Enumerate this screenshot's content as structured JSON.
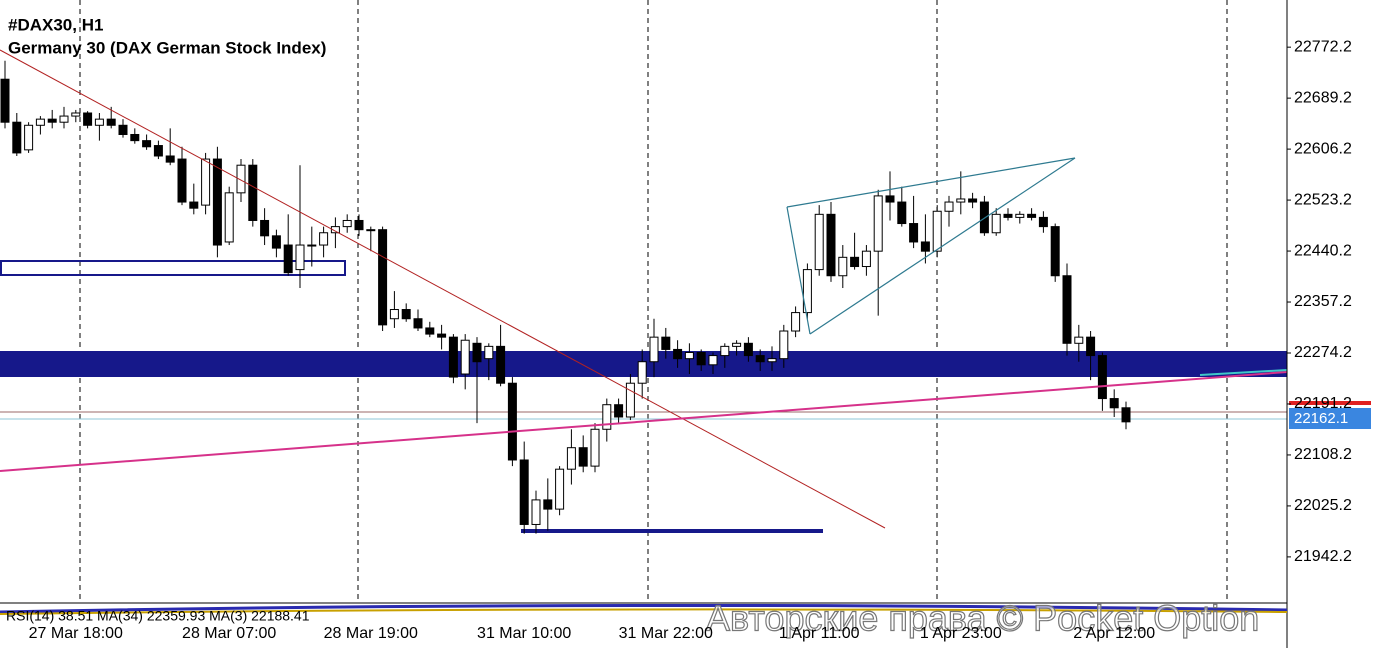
{
  "chart_data": {
    "type": "candlestick",
    "title": "#DAX30, H1",
    "subtitle": "Germany 30 (DAX German Stock Index)",
    "indicator_text": "RSI(14) 38.51 MA(34) 22359.93 MA(3) 22188.41",
    "watermark": "Авторские права © Pocket Option",
    "categories": [
      null,
      null,
      null,
      null,
      null,
      null,
      "27 Mar 18:00",
      null,
      null,
      null,
      null,
      null,
      null,
      null,
      null,
      null,
      null,
      null,
      null,
      "28 Mar 07:00",
      null,
      null,
      null,
      null,
      null,
      null,
      null,
      null,
      null,
      null,
      null,
      "28 Mar 19:00",
      null,
      null,
      null,
      null,
      null,
      null,
      null,
      null,
      null,
      null,
      null,
      null,
      "31 Mar 10:00",
      null,
      null,
      null,
      null,
      null,
      null,
      null,
      null,
      null,
      null,
      null,
      "31 Mar 22:00",
      null,
      null,
      null,
      null,
      null,
      null,
      null,
      null,
      null,
      null,
      null,
      null,
      "1 Apr 11:00",
      null,
      null,
      null,
      null,
      null,
      null,
      null,
      null,
      null,
      null,
      null,
      "1 Apr 23:00",
      null,
      null,
      null,
      null,
      null,
      null,
      null,
      null,
      null,
      null,
      null,
      null,
      "2 Apr 12:00",
      null
    ],
    "open": [
      22720,
      22650,
      22605,
      22645,
      22655,
      22650,
      22660,
      22665,
      22645,
      22655,
      22645,
      22630,
      22620,
      22612,
      22595,
      22590,
      22520,
      22515,
      22590,
      22455,
      22535,
      22580,
      22490,
      22465,
      22450,
      22410,
      22450,
      22450,
      22470,
      22480,
      22490,
      22475,
      22475,
      22330,
      22345,
      22330,
      22315,
      22305,
      22300,
      22240,
      22290,
      22265,
      22285,
      22225,
      22100,
      21995,
      22035,
      22020,
      22085,
      22120,
      22090,
      22150,
      22190,
      22170,
      22225,
      22260,
      22300,
      22280,
      22265,
      22275,
      22255,
      22270,
      22285,
      22290,
      22270,
      22260,
      22265,
      22310,
      22340,
      22410,
      22500,
      22400,
      22430,
      22415,
      22440,
      22530,
      22520,
      22485,
      22455,
      22440,
      22505,
      22520,
      22525,
      22520,
      22470,
      22500,
      22495,
      22500,
      22495,
      22480,
      22400,
      22290,
      22300,
      22270,
      22200,
      22185
    ],
    "high": [
      22750,
      22665,
      22650,
      22660,
      22670,
      22675,
      22670,
      22668,
      22665,
      22675,
      22655,
      22640,
      22630,
      22620,
      22640,
      22610,
      22550,
      22600,
      22610,
      22545,
      22590,
      22590,
      22510,
      22475,
      22500,
      22580,
      22480,
      22480,
      22495,
      22500,
      22500,
      22480,
      22480,
      22375,
      22355,
      22345,
      22325,
      22320,
      22305,
      22305,
      22300,
      22290,
      22320,
      22235,
      22130,
      22050,
      22070,
      22090,
      22150,
      22140,
      22160,
      22200,
      22200,
      22240,
      22280,
      22330,
      22315,
      22295,
      22290,
      22280,
      22275,
      22290,
      22295,
      22300,
      22280,
      22285,
      22320,
      22350,
      22420,
      22515,
      22520,
      22450,
      22470,
      22450,
      22540,
      22570,
      22545,
      22530,
      22500,
      22515,
      22530,
      22570,
      22535,
      22530,
      22510,
      22510,
      22505,
      22510,
      22505,
      22485,
      22420,
      22320,
      22310,
      22275,
      22215,
      22195
    ],
    "low": [
      22640,
      22595,
      22600,
      22630,
      22640,
      22640,
      22650,
      22640,
      22620,
      22640,
      22625,
      22615,
      22605,
      22590,
      22580,
      22515,
      22500,
      22500,
      22430,
      22450,
      22520,
      22480,
      22450,
      22430,
      22400,
      22380,
      22415,
      22430,
      22445,
      22470,
      22465,
      22440,
      22310,
      22315,
      22325,
      22310,
      22300,
      22280,
      22225,
      22215,
      22160,
      22230,
      22220,
      22090,
      21980,
      21980,
      21985,
      22010,
      22060,
      22080,
      22080,
      22130,
      22160,
      22165,
      22200,
      22235,
      22265,
      22250,
      22240,
      22245,
      22240,
      22250,
      22270,
      22260,
      22245,
      22245,
      22250,
      22300,
      22330,
      22400,
      22390,
      22380,
      22410,
      22400,
      22335,
      22490,
      22480,
      22445,
      22420,
      22430,
      22480,
      22500,
      22510,
      22465,
      22465,
      22490,
      22485,
      22490,
      22470,
      22390,
      22270,
      22260,
      22230,
      22180,
      22170,
      22150
    ],
    "close": [
      22650,
      22600,
      22645,
      22655,
      22650,
      22660,
      22665,
      22645,
      22655,
      22645,
      22630,
      22620,
      22610,
      22595,
      22585,
      22520,
      22510,
      22590,
      22450,
      22535,
      22580,
      22490,
      22465,
      22445,
      22405,
      22450,
      22450,
      22470,
      22480,
      22490,
      22475,
      22475,
      22320,
      22345,
      22330,
      22315,
      22305,
      22300,
      22235,
      22295,
      22260,
      22285,
      22225,
      22100,
      21995,
      22035,
      22020,
      22085,
      22120,
      22090,
      22150,
      22190,
      22170,
      22225,
      22260,
      22300,
      22280,
      22265,
      22275,
      22255,
      22270,
      22285,
      22290,
      22270,
      22260,
      22265,
      22310,
      22340,
      22410,
      22500,
      22400,
      22430,
      22415,
      22440,
      22530,
      22520,
      22485,
      22455,
      22440,
      22505,
      22520,
      22525,
      22520,
      22470,
      22500,
      22495,
      22500,
      22495,
      22480,
      22400,
      22290,
      22300,
      22270,
      22200,
      22185,
      22162.1
    ],
    "up_color": "#ffffff",
    "down_color": "#000000",
    "ylim": [
      21872,
      22849
    ],
    "yticks": [
      22772.2,
      22689.2,
      22606.2,
      22523.2,
      22440.2,
      22357.2,
      22274.2,
      22191.2,
      22108.2,
      22025.2,
      21942.2
    ]
  }
}
